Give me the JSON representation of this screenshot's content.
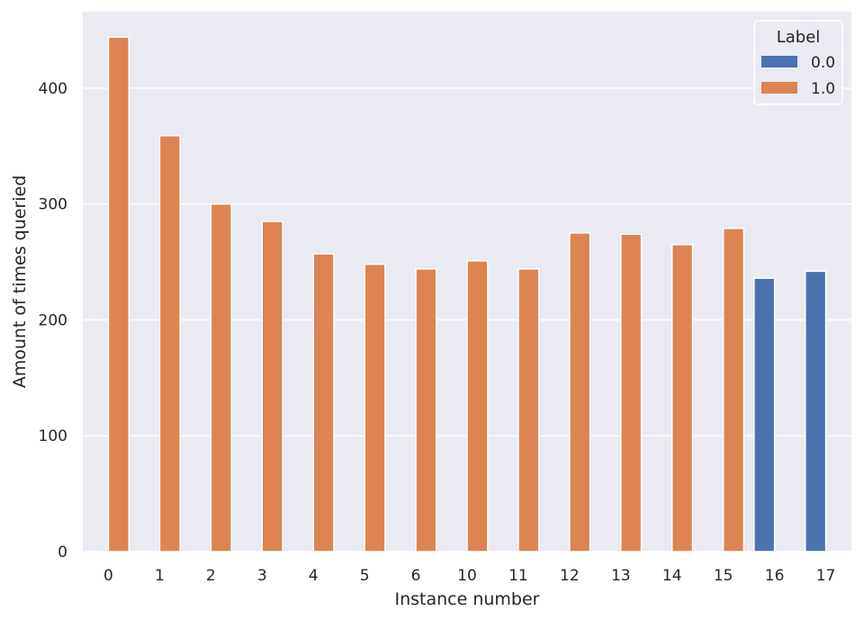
{
  "chart_data": {
    "type": "bar",
    "xlabel": "Instance number",
    "ylabel": "Amount of times queried",
    "categories": [
      "0",
      "1",
      "2",
      "3",
      "4",
      "5",
      "6",
      "10",
      "11",
      "12",
      "13",
      "14",
      "15",
      "16",
      "17"
    ],
    "series": [
      {
        "name": "0.0",
        "color": "#4c72b0",
        "values": [
          null,
          null,
          null,
          null,
          null,
          null,
          null,
          null,
          null,
          null,
          null,
          null,
          null,
          236,
          242
        ]
      },
      {
        "name": "1.0",
        "color": "#dd8452",
        "values": [
          444,
          359,
          300,
          285,
          257,
          248,
          244,
          251,
          244,
          275,
          274,
          265,
          279,
          null,
          null
        ]
      }
    ],
    "ylim": [
      0,
      466
    ],
    "yticks": [
      0,
      100,
      200,
      300,
      400
    ],
    "grid": true,
    "legend": {
      "title": "Label",
      "position": "top-right"
    },
    "background": "#eaeaf2"
  }
}
